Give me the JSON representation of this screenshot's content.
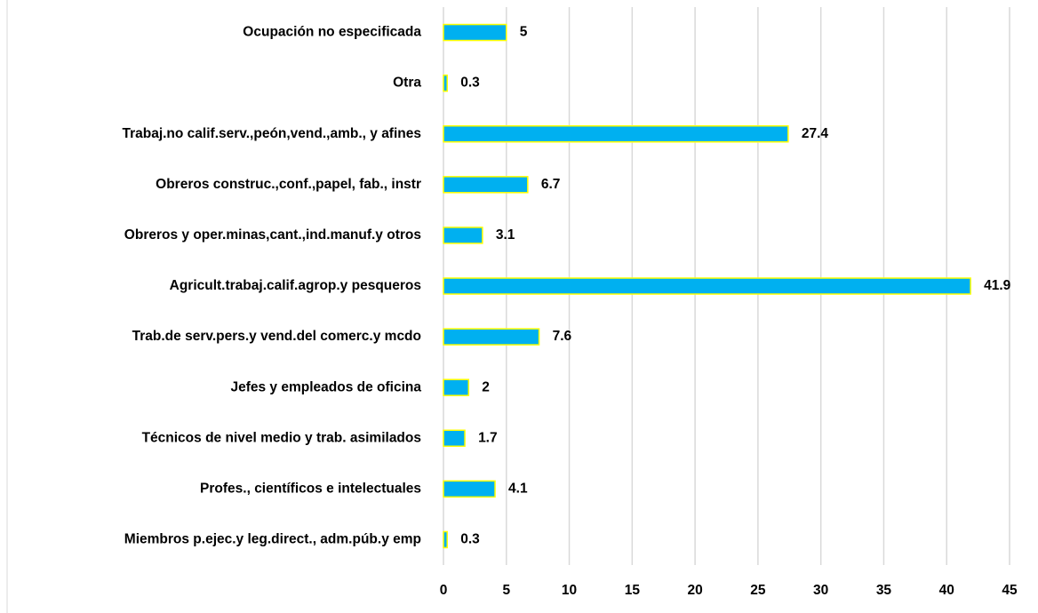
{
  "chart_data": {
    "type": "bar",
    "orientation": "horizontal",
    "categories": [
      "Ocupación no especificada",
      "Otra",
      "Trabaj.no calif.serv.,peón,vend.,amb., y afines",
      "Obreros construc.,conf.,papel, fab., instr",
      "Obreros y oper.minas,cant.,ind.manuf.y otros",
      "Agricult.trabaj.calif.agrop.y pesqueros",
      "Trab.de serv.pers.y vend.del comerc.y mcdo",
      "Jefes y empleados de oficina",
      "Técnicos de nivel medio y trab. asimilados",
      "Profes., científicos e intelectuales",
      "Miembros p.ejec.y leg.direct., adm.púb.y emp"
    ],
    "values": [
      5,
      0.3,
      27.4,
      6.7,
      3.1,
      41.9,
      7.6,
      2,
      1.7,
      4.1,
      0.3
    ],
    "color": "#00b0f0",
    "edge_color": "#ffff00",
    "xlim": [
      0,
      45
    ],
    "xticks": [
      0,
      5,
      10,
      15,
      20,
      25,
      30,
      35,
      40,
      45
    ],
    "grid": true
  }
}
